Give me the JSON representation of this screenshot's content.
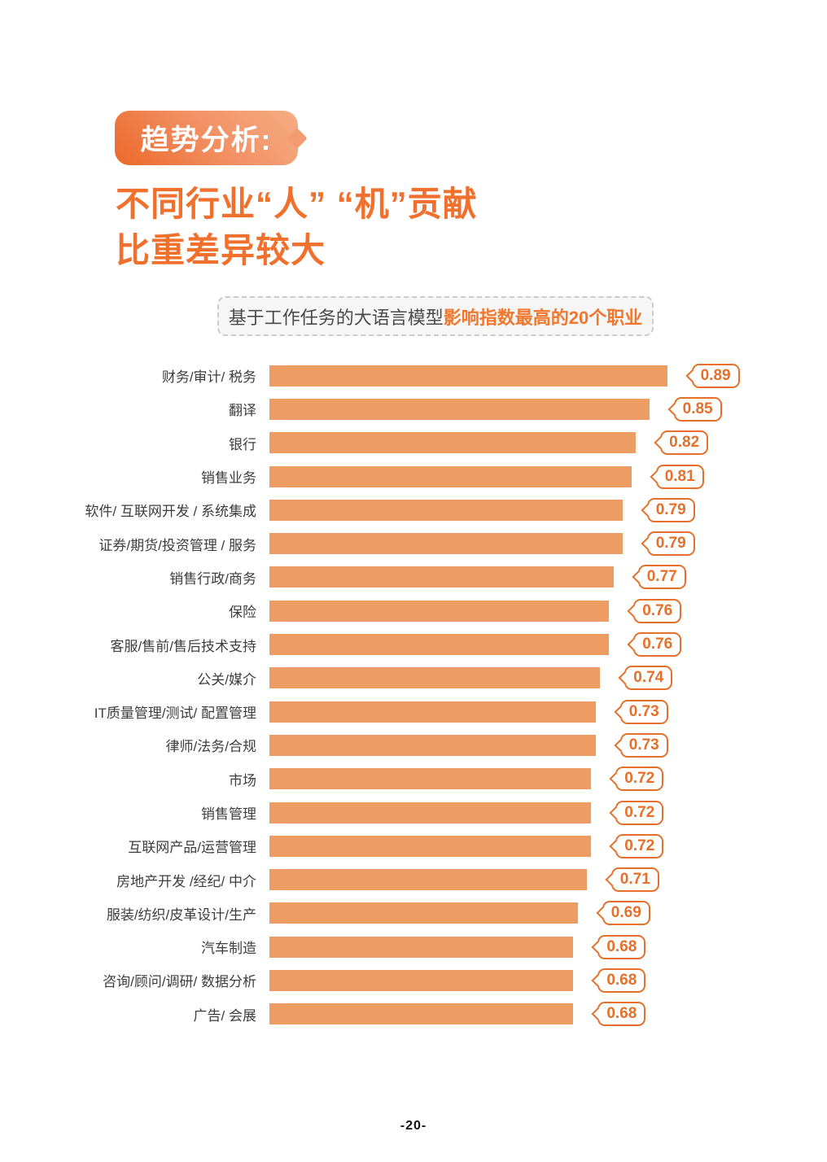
{
  "page": {
    "background": "#ffffff",
    "footer_page_number": "-20-"
  },
  "header": {
    "badge_label": "趋势分析:"
  },
  "title": {
    "line1": "不同行业“人” “机”贡献",
    "line2": "比重差异较大",
    "color": "#f0702d"
  },
  "subtitle": {
    "prefix": "基于工作任务的大语言模型",
    "highlight": "影响指数最高的20个职业",
    "highlight_color": "#f0772e"
  },
  "chart_data": {
    "type": "bar",
    "orientation": "horizontal",
    "title": "基于工作任务的大语言模型影响指数最高的20个职业",
    "xlabel": "",
    "ylabel": "",
    "xlim": [
      0,
      1
    ],
    "grid": false,
    "legend": false,
    "bar_color": "#ed9c63",
    "value_color": "#e4702b",
    "label_color": "#3d3d3d",
    "categories": [
      "财务/审计/ 税务",
      "翻译",
      "银行",
      "销售业务",
      "软件/ 互联网开发 / 系统集成",
      "证券/期货/投资管理 / 服务",
      "销售行政/商务",
      "保险",
      "客服/售前/售后技术支持",
      "公关/媒介",
      "IT质量管理/测试/ 配置管理",
      "律师/法务/合规",
      "市场",
      "销售管理",
      "互联网产品/运营管理",
      "房地产开发 /经纪/ 中介",
      "服装/纺织/皮革设计/生产",
      "汽车制造",
      "咨询/顾问/调研/ 数据分析",
      "广告/ 会展"
    ],
    "values": [
      0.89,
      0.85,
      0.82,
      0.81,
      0.79,
      0.79,
      0.77,
      0.76,
      0.76,
      0.74,
      0.73,
      0.73,
      0.72,
      0.72,
      0.72,
      0.71,
      0.69,
      0.68,
      0.68,
      0.68
    ],
    "value_labels": [
      "0.89",
      "0.85",
      "0.82",
      "0.81",
      "0.79",
      "0.79",
      "0.77",
      "0.76",
      "0.76",
      "0.74",
      "0.73",
      "0.73",
      "0.72",
      "0.72",
      "0.72",
      "0.71",
      "0.69",
      "0.68",
      "0.68",
      "0.68"
    ]
  }
}
